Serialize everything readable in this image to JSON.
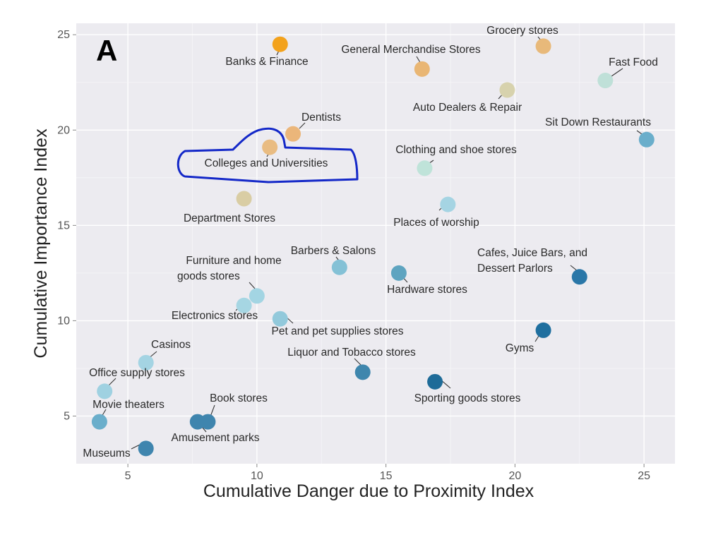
{
  "chart_data": {
    "type": "scatter",
    "panel_label": "A",
    "xlabel": "Cumulative Danger due to Proximity Index",
    "ylabel": "Cumulative Importance Index",
    "xlim": [
      3,
      26.2
    ],
    "ylim": [
      2.5,
      25.6
    ],
    "xticks": [
      5,
      10,
      15,
      20,
      25
    ],
    "yticks": [
      5,
      10,
      15,
      20,
      25
    ],
    "grid": true,
    "legend": "none",
    "highlight": "Colleges and Universities",
    "highlight_color": "#1428c8",
    "points": [
      {
        "label": "Banks & Finance",
        "x": 10.9,
        "y": 24.5,
        "color": "#f3a21c"
      },
      {
        "label": "Grocery stores",
        "x": 21.1,
        "y": 24.4,
        "color": "#e8b97a"
      },
      {
        "label": "General Merchandise Stores",
        "x": 16.4,
        "y": 23.2,
        "color": "#e9b674"
      },
      {
        "label": "Fast Food",
        "x": 23.5,
        "y": 22.6,
        "color": "#bfe0d8"
      },
      {
        "label": "Auto Dealers & Repair",
        "x": 19.7,
        "y": 22.1,
        "color": "#d7d2ad"
      },
      {
        "label": "Dentists",
        "x": 11.4,
        "y": 19.8,
        "color": "#ebb67a"
      },
      {
        "label": "Colleges and Universities",
        "x": 10.5,
        "y": 19.1,
        "color": "#e9bc82"
      },
      {
        "label": "Sit Down Restaurants",
        "x": 25.1,
        "y": 19.5,
        "color": "#6aaecb"
      },
      {
        "label": "Clothing and shoe stores",
        "x": 16.5,
        "y": 18.0,
        "color": "#bfe3d9"
      },
      {
        "label": "Department Stores",
        "x": 9.5,
        "y": 16.4,
        "color": "#d9cda4"
      },
      {
        "label": "Places of worship",
        "x": 17.4,
        "y": 16.1,
        "color": "#a5d4e3"
      },
      {
        "label": "Barbers & Salons",
        "x": 13.2,
        "y": 12.8,
        "color": "#84c1d6"
      },
      {
        "label": "Hardware stores",
        "x": 15.5,
        "y": 12.5,
        "color": "#5ea4c0"
      },
      {
        "label": "Cafes, Juice Bars, and Dessert Parlors",
        "x": 22.5,
        "y": 12.3,
        "color": "#2a77a8"
      },
      {
        "label": "Furniture and home goods stores",
        "x": 10.0,
        "y": 11.3,
        "color": "#a3d5e3"
      },
      {
        "label": "Electronics stores",
        "x": 9.5,
        "y": 10.8,
        "color": "#a6d6e3"
      },
      {
        "label": "Pet and pet supplies stores",
        "x": 10.9,
        "y": 10.1,
        "color": "#92c9db"
      },
      {
        "label": "Gyms",
        "x": 21.1,
        "y": 9.5,
        "color": "#1f6f9f"
      },
      {
        "label": "Casinos",
        "x": 5.7,
        "y": 7.8,
        "color": "#a4d4e3"
      },
      {
        "label": "Liquor and Tobacco stores",
        "x": 14.1,
        "y": 7.3,
        "color": "#3e86ad"
      },
      {
        "label": "Sporting goods stores",
        "x": 16.9,
        "y": 6.8,
        "color": "#1e6b98"
      },
      {
        "label": "Office supply stores",
        "x": 4.1,
        "y": 6.3,
        "color": "#9fd1e1"
      },
      {
        "label": "Movie theaters",
        "x": 3.9,
        "y": 4.7,
        "color": "#6aaecb"
      },
      {
        "label": "Book stores",
        "x": 8.1,
        "y": 4.7,
        "color": "#3f85ae"
      },
      {
        "label": "Amusement parks",
        "x": 7.7,
        "y": 4.7,
        "color": "#3f85ae"
      },
      {
        "label": "Museums",
        "x": 5.7,
        "y": 3.3,
        "color": "#3f85ae"
      }
    ]
  }
}
